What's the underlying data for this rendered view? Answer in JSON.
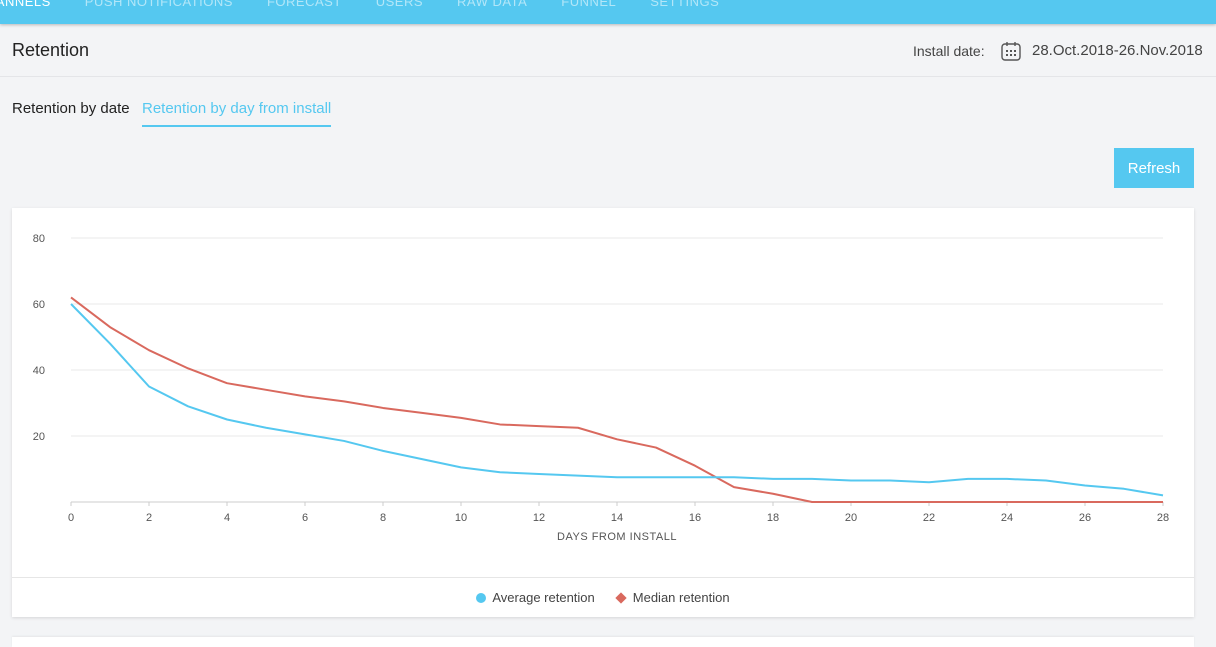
{
  "nav": {
    "items": [
      "CHANNELS",
      "PUSH NOTIFICATIONS",
      "FORECAST",
      "USERS",
      "RAW DATA",
      "FUNNEL",
      "SETTINGS"
    ]
  },
  "header": {
    "title": "Retention",
    "install_label": "Install date:",
    "date_range": "28.Oct.2018-26.Nov.2018"
  },
  "tabs": {
    "by_date": "Retention by date",
    "by_day": "Retention by day from install"
  },
  "toolbar": {
    "refresh_label": "Refresh"
  },
  "colors": {
    "accent": "#55c8f0",
    "median": "#d9695e"
  },
  "chart_data": {
    "type": "line",
    "title": "",
    "xlabel": "DAYS FROM INSTALL",
    "ylabel": "",
    "xlim": [
      0,
      28
    ],
    "ylim": [
      0,
      80
    ],
    "x_ticks": [
      0,
      2,
      4,
      6,
      8,
      10,
      12,
      14,
      16,
      18,
      20,
      22,
      24,
      26,
      28
    ],
    "y_ticks": [
      20,
      40,
      60,
      80
    ],
    "x": [
      0,
      1,
      2,
      3,
      4,
      5,
      6,
      7,
      8,
      9,
      10,
      11,
      12,
      13,
      14,
      15,
      16,
      17,
      18,
      19,
      20,
      21,
      22,
      23,
      24,
      25,
      26,
      27,
      28
    ],
    "series": [
      {
        "name": "Average retention",
        "marker": "circle",
        "values": [
          60,
          48,
          35,
          29,
          25,
          22.5,
          20.5,
          18.5,
          15.5,
          13,
          10.5,
          9,
          8.5,
          8,
          7.5,
          7.5,
          7.5,
          7.5,
          7,
          7,
          6.5,
          6.5,
          6,
          7,
          7,
          6.5,
          5,
          4,
          2
        ]
      },
      {
        "name": "Median retention",
        "marker": "diamond",
        "values": [
          62,
          53,
          46,
          40.5,
          36,
          34,
          32,
          30.5,
          28.5,
          27,
          25.5,
          23.5,
          23,
          22.5,
          19,
          16.5,
          11,
          4.5,
          2.5,
          0,
          0,
          0,
          0,
          0,
          0,
          0,
          0,
          0,
          0
        ]
      }
    ],
    "legend": "bottom"
  }
}
